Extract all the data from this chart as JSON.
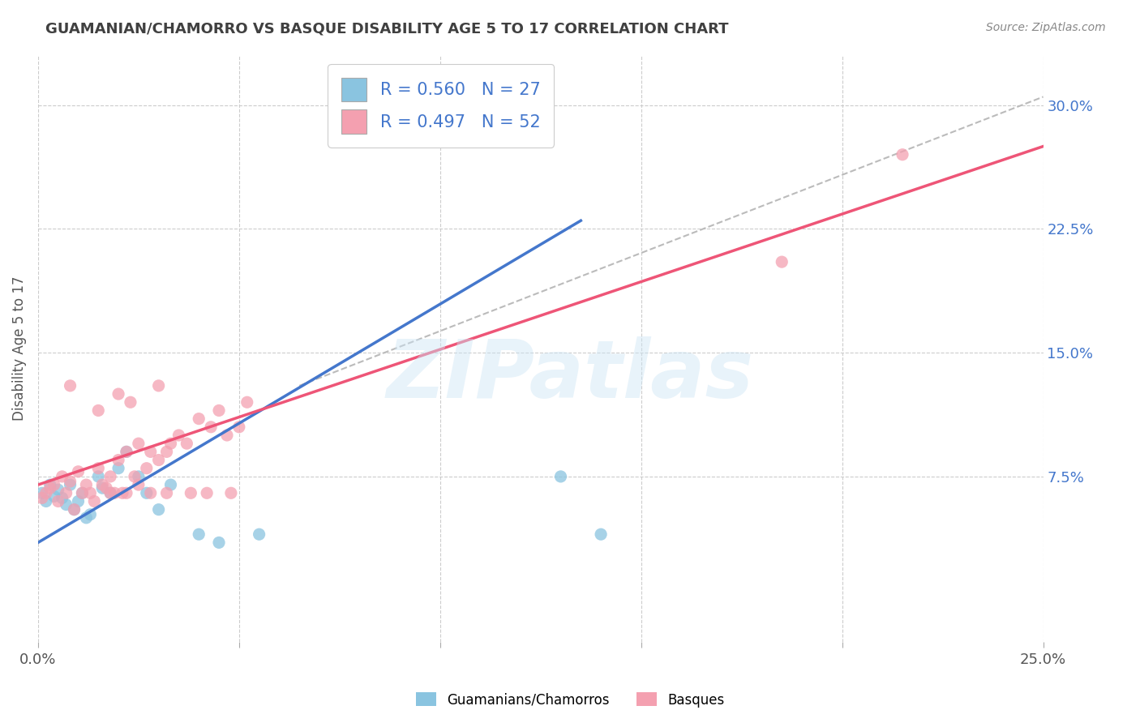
{
  "title": "GUAMANIAN/CHAMORRO VS BASQUE DISABILITY AGE 5 TO 17 CORRELATION CHART",
  "source": "Source: ZipAtlas.com",
  "ylabel": "Disability Age 5 to 17",
  "xlim": [
    0.0,
    0.25
  ],
  "ylim": [
    -0.025,
    0.33
  ],
  "xticks": [
    0.0,
    0.05,
    0.1,
    0.15,
    0.2,
    0.25
  ],
  "xticklabels": [
    "0.0%",
    "",
    "",
    "",
    "",
    "25.0%"
  ],
  "yticks_right": [
    0.075,
    0.15,
    0.225,
    0.3
  ],
  "yticklabels_right": [
    "7.5%",
    "15.0%",
    "22.5%",
    "30.0%"
  ],
  "blue_R": 0.56,
  "blue_N": 27,
  "pink_R": 0.497,
  "pink_N": 52,
  "blue_color": "#8ac4e0",
  "pink_color": "#f4a0b0",
  "blue_line_color": "#4477cc",
  "pink_line_color": "#ee5577",
  "legend_label_blue": "Guamanians/Chamorros",
  "legend_label_pink": "Basques",
  "blue_scatter_x": [
    0.001,
    0.002,
    0.003,
    0.004,
    0.005,
    0.006,
    0.007,
    0.008,
    0.009,
    0.01,
    0.011,
    0.012,
    0.013,
    0.015,
    0.016,
    0.018,
    0.02,
    0.022,
    0.025,
    0.027,
    0.03,
    0.033,
    0.04,
    0.045,
    0.055,
    0.13,
    0.14
  ],
  "blue_scatter_y": [
    0.065,
    0.06,
    0.07,
    0.063,
    0.067,
    0.062,
    0.058,
    0.07,
    0.055,
    0.06,
    0.065,
    0.05,
    0.052,
    0.075,
    0.068,
    0.065,
    0.08,
    0.09,
    0.075,
    0.065,
    0.055,
    0.07,
    0.04,
    0.035,
    0.04,
    0.075,
    0.04
  ],
  "pink_scatter_x": [
    0.001,
    0.002,
    0.003,
    0.004,
    0.005,
    0.006,
    0.007,
    0.008,
    0.009,
    0.01,
    0.011,
    0.012,
    0.013,
    0.014,
    0.015,
    0.016,
    0.017,
    0.018,
    0.019,
    0.02,
    0.021,
    0.022,
    0.024,
    0.025,
    0.027,
    0.028,
    0.03,
    0.032,
    0.033,
    0.035,
    0.037,
    0.04,
    0.043,
    0.045,
    0.047,
    0.05,
    0.018,
    0.022,
    0.025,
    0.028,
    0.032,
    0.038,
    0.042,
    0.048,
    0.052,
    0.008,
    0.015,
    0.02,
    0.023,
    0.03,
    0.185,
    0.215
  ],
  "pink_scatter_y": [
    0.062,
    0.065,
    0.068,
    0.07,
    0.06,
    0.075,
    0.065,
    0.072,
    0.055,
    0.078,
    0.065,
    0.07,
    0.065,
    0.06,
    0.08,
    0.07,
    0.068,
    0.075,
    0.065,
    0.085,
    0.065,
    0.09,
    0.075,
    0.095,
    0.08,
    0.09,
    0.085,
    0.09,
    0.095,
    0.1,
    0.095,
    0.11,
    0.105,
    0.115,
    0.1,
    0.105,
    0.065,
    0.065,
    0.07,
    0.065,
    0.065,
    0.065,
    0.065,
    0.065,
    0.12,
    0.13,
    0.115,
    0.125,
    0.12,
    0.13,
    0.205,
    0.27
  ],
  "blue_line_x": [
    0.0,
    0.135
  ],
  "blue_line_y": [
    0.035,
    0.23
  ],
  "pink_line_x": [
    0.0,
    0.25
  ],
  "pink_line_y": [
    0.07,
    0.275
  ],
  "ref_line_x": [
    0.065,
    0.25
  ],
  "ref_line_y": [
    0.13,
    0.305
  ],
  "background_color": "#ffffff",
  "grid_color": "#cccccc",
  "title_color": "#404040",
  "right_axis_color": "#4477cc",
  "source_color": "#888888"
}
